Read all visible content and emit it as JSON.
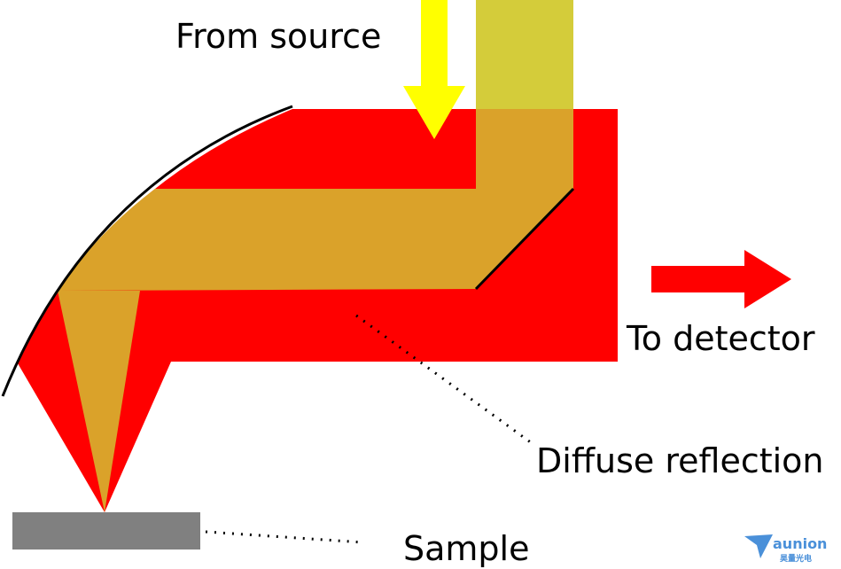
{
  "labels": {
    "source": "From source",
    "detector": "To detector",
    "diffuse": "Diffuse reflection",
    "sample": "Sample"
  },
  "logo": {
    "name": "aunion",
    "subtitle": "昊量光电"
  },
  "colors": {
    "reflection": "#ff0000",
    "incident_beam": "#daa22a",
    "source_beam": "#d4cc3a",
    "source_arrow": "#ffff00",
    "detector_arrow": "#ff0000",
    "mirror": "#000000",
    "sample": "#808080",
    "logo": "#4a90d9"
  }
}
